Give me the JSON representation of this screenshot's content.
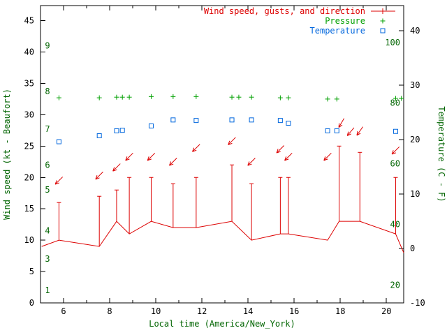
{
  "colors": {
    "wind": "#dd0000",
    "pressure": "#00a000",
    "temperature": "#0066dd",
    "axis_title": "#006400",
    "tick_text": "#000000",
    "border": "#000000",
    "background": "#ffffff"
  },
  "legend": {
    "items": [
      {
        "label": "Wind speed, gusts, and direction",
        "series": "wind",
        "marker": "errorbar-plus"
      },
      {
        "label": "Pressure",
        "series": "pressure",
        "marker": "plus"
      },
      {
        "label": "Temperature",
        "series": "temperature",
        "marker": "open-square"
      }
    ]
  },
  "chart_data": {
    "type": "line",
    "title": "",
    "xlabel": "Local time (America/New_York)",
    "ylabel_left": "Wind speed (kt - Beaufort)",
    "ylabel_right": "Temperature (C - F)",
    "x_range": [
      5.0,
      20.75
    ],
    "x_ticks": [
      6,
      8,
      10,
      12,
      14,
      16,
      18,
      20
    ],
    "x_minor_step": 1,
    "y_left_range_kt": [
      0,
      47.4
    ],
    "y_left_ticks": [
      0,
      5,
      10,
      15,
      20,
      25,
      30,
      35,
      40,
      45
    ],
    "y_right_range_c": [
      -10,
      44.6
    ],
    "y_right_ticks": [
      -10,
      0,
      10,
      20,
      30,
      40
    ],
    "grid": false,
    "legend_position": "top-right-inside",
    "beaufort_labels": [
      {
        "b": "1",
        "kt": 2
      },
      {
        "b": "3",
        "kt": 7
      },
      {
        "b": "4",
        "kt": 11.5
      },
      {
        "b": "5",
        "kt": 18
      },
      {
        "b": "6",
        "kt": 22
      },
      {
        "b": "7",
        "kt": 27.7
      },
      {
        "b": "8",
        "kt": 33.7
      },
      {
        "b": "9",
        "kt": 41
      }
    ],
    "fahrenheit_labels": [
      {
        "f": "20",
        "c": -6.7
      },
      {
        "f": "40",
        "c": 4.4
      },
      {
        "f": "60",
        "c": 15.6
      },
      {
        "f": "80",
        "c": 26.7
      },
      {
        "f": "100",
        "c": 37.8
      }
    ],
    "wind": {
      "units": "kt",
      "points": [
        {
          "t": 5.05,
          "speed": 9
        },
        {
          "t": 5.8,
          "speed": 10,
          "gust": 16
        },
        {
          "t": 7.55,
          "speed": 9,
          "gust": 17
        },
        {
          "t": 8.3,
          "speed": 13,
          "gust": 18
        },
        {
          "t": 8.85,
          "speed": 11,
          "gust": 20
        },
        {
          "t": 9.8,
          "speed": 13,
          "gust": 20
        },
        {
          "t": 10.75,
          "speed": 12,
          "gust": 19
        },
        {
          "t": 11.75,
          "speed": 12,
          "gust": 20
        },
        {
          "t": 13.3,
          "speed": 13,
          "gust": 22
        },
        {
          "t": 14.15,
          "speed": 10,
          "gust": 19
        },
        {
          "t": 15.4,
          "speed": 11,
          "gust": 20
        },
        {
          "t": 15.75,
          "speed": 11,
          "gust": 20
        },
        {
          "t": 17.45,
          "speed": 10
        },
        {
          "t": 17.95,
          "speed": 13,
          "gust": 25
        },
        {
          "t": 18.85,
          "speed": 13,
          "gust": 24
        },
        {
          "t": 20.4,
          "speed": 11,
          "gust": 20
        },
        {
          "t": 20.75,
          "speed": 8
        }
      ]
    },
    "wind_direction_arrows": {
      "note": "angle is on-screen pointing direction in degrees, 0=right, 90=down; arrows point down-left = wind from NE",
      "arrows": [
        {
          "t": 5.8,
          "kt": 19.5,
          "angle": 135
        },
        {
          "t": 7.55,
          "kt": 20.3,
          "angle": 135
        },
        {
          "t": 8.3,
          "kt": 21.6,
          "angle": 135
        },
        {
          "t": 8.85,
          "kt": 23.3,
          "angle": 135
        },
        {
          "t": 9.8,
          "kt": 23.3,
          "angle": 135
        },
        {
          "t": 10.75,
          "kt": 22.5,
          "angle": 135
        },
        {
          "t": 11.75,
          "kt": 24.7,
          "angle": 135
        },
        {
          "t": 13.3,
          "kt": 25.8,
          "angle": 135
        },
        {
          "t": 14.15,
          "kt": 22.5,
          "angle": 135
        },
        {
          "t": 15.4,
          "kt": 24.5,
          "angle": 135
        },
        {
          "t": 15.75,
          "kt": 23.3,
          "angle": 135
        },
        {
          "t": 17.45,
          "kt": 23.3,
          "angle": 135
        },
        {
          "t": 18.05,
          "kt": 28.7,
          "angle": 120
        },
        {
          "t": 18.45,
          "kt": 27.3,
          "angle": 130
        },
        {
          "t": 18.85,
          "kt": 27.4,
          "angle": 125
        },
        {
          "t": 20.4,
          "kt": 24.3,
          "angle": 135
        }
      ]
    },
    "pressure": {
      "note": "pressure scale not shown on any visible axis; values stored as plotted height in left-axis units",
      "t": [
        5.8,
        7.55,
        8.3,
        8.55,
        8.85,
        9.8,
        10.75,
        11.75,
        13.3,
        13.6,
        14.15,
        15.4,
        15.75,
        17.45,
        17.85,
        20.4,
        20.65
      ],
      "y_left_axis_units": [
        32.7,
        32.7,
        32.8,
        32.8,
        32.8,
        32.9,
        32.9,
        32.9,
        32.8,
        32.8,
        32.8,
        32.7,
        32.7,
        32.5,
        32.5,
        32.6,
        32.6
      ]
    },
    "temperature": {
      "units": "C",
      "t": [
        5.8,
        7.55,
        8.3,
        8.55,
        9.8,
        10.75,
        11.75,
        13.3,
        14.15,
        15.4,
        15.75,
        17.45,
        17.85,
        20.4
      ],
      "c": [
        19.6,
        20.7,
        21.6,
        21.7,
        22.5,
        23.6,
        23.5,
        23.6,
        23.6,
        23.5,
        23.0,
        21.6,
        21.6,
        21.5
      ]
    }
  }
}
